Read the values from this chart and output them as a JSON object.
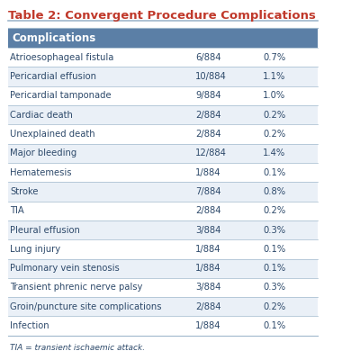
{
  "title": "Table 2: Convergent Procedure Complications",
  "title_color": "#C0392B",
  "header_bg": "#5B7FA6",
  "header_text": "Complications",
  "header_text_color": "#FFFFFF",
  "rows": [
    [
      "Atrioesophageal fistula",
      "6/884",
      "0.7%"
    ],
    [
      "Pericardial effusion",
      "10/884",
      "1.1%"
    ],
    [
      "Pericardial tamponade",
      "9/884",
      "1.0%"
    ],
    [
      "Cardiac death",
      "2/884",
      "0.2%"
    ],
    [
      "Unexplained death",
      "2/884",
      "0.2%"
    ],
    [
      "Major bleeding",
      "12/884",
      "1.4%"
    ],
    [
      "Hematemesis",
      "1/884",
      "0.1%"
    ],
    [
      "Stroke",
      "7/884",
      "0.8%"
    ],
    [
      "TIA",
      "2/884",
      "0.2%"
    ],
    [
      "Pleural effusion",
      "3/884",
      "0.3%"
    ],
    [
      "Lung injury",
      "1/884",
      "0.1%"
    ],
    [
      "Pulmonary vein stenosis",
      "1/884",
      "0.1%"
    ],
    [
      "Transient phrenic nerve palsy",
      "3/884",
      "0.3%"
    ],
    [
      "Groin/puncture site complications",
      "2/884",
      "0.2%"
    ],
    [
      "Infection",
      "1/884",
      "0.1%"
    ]
  ],
  "row_colors": [
    "#FFFFFF",
    "#EAF0F7"
  ],
  "text_color": "#2E4A6B",
  "line_color": "#A0B8CC",
  "footnote": "TIA = transient ischaemic attack.",
  "footnote_color": "#2E4A6B",
  "bg_color": "#FFFFFF"
}
